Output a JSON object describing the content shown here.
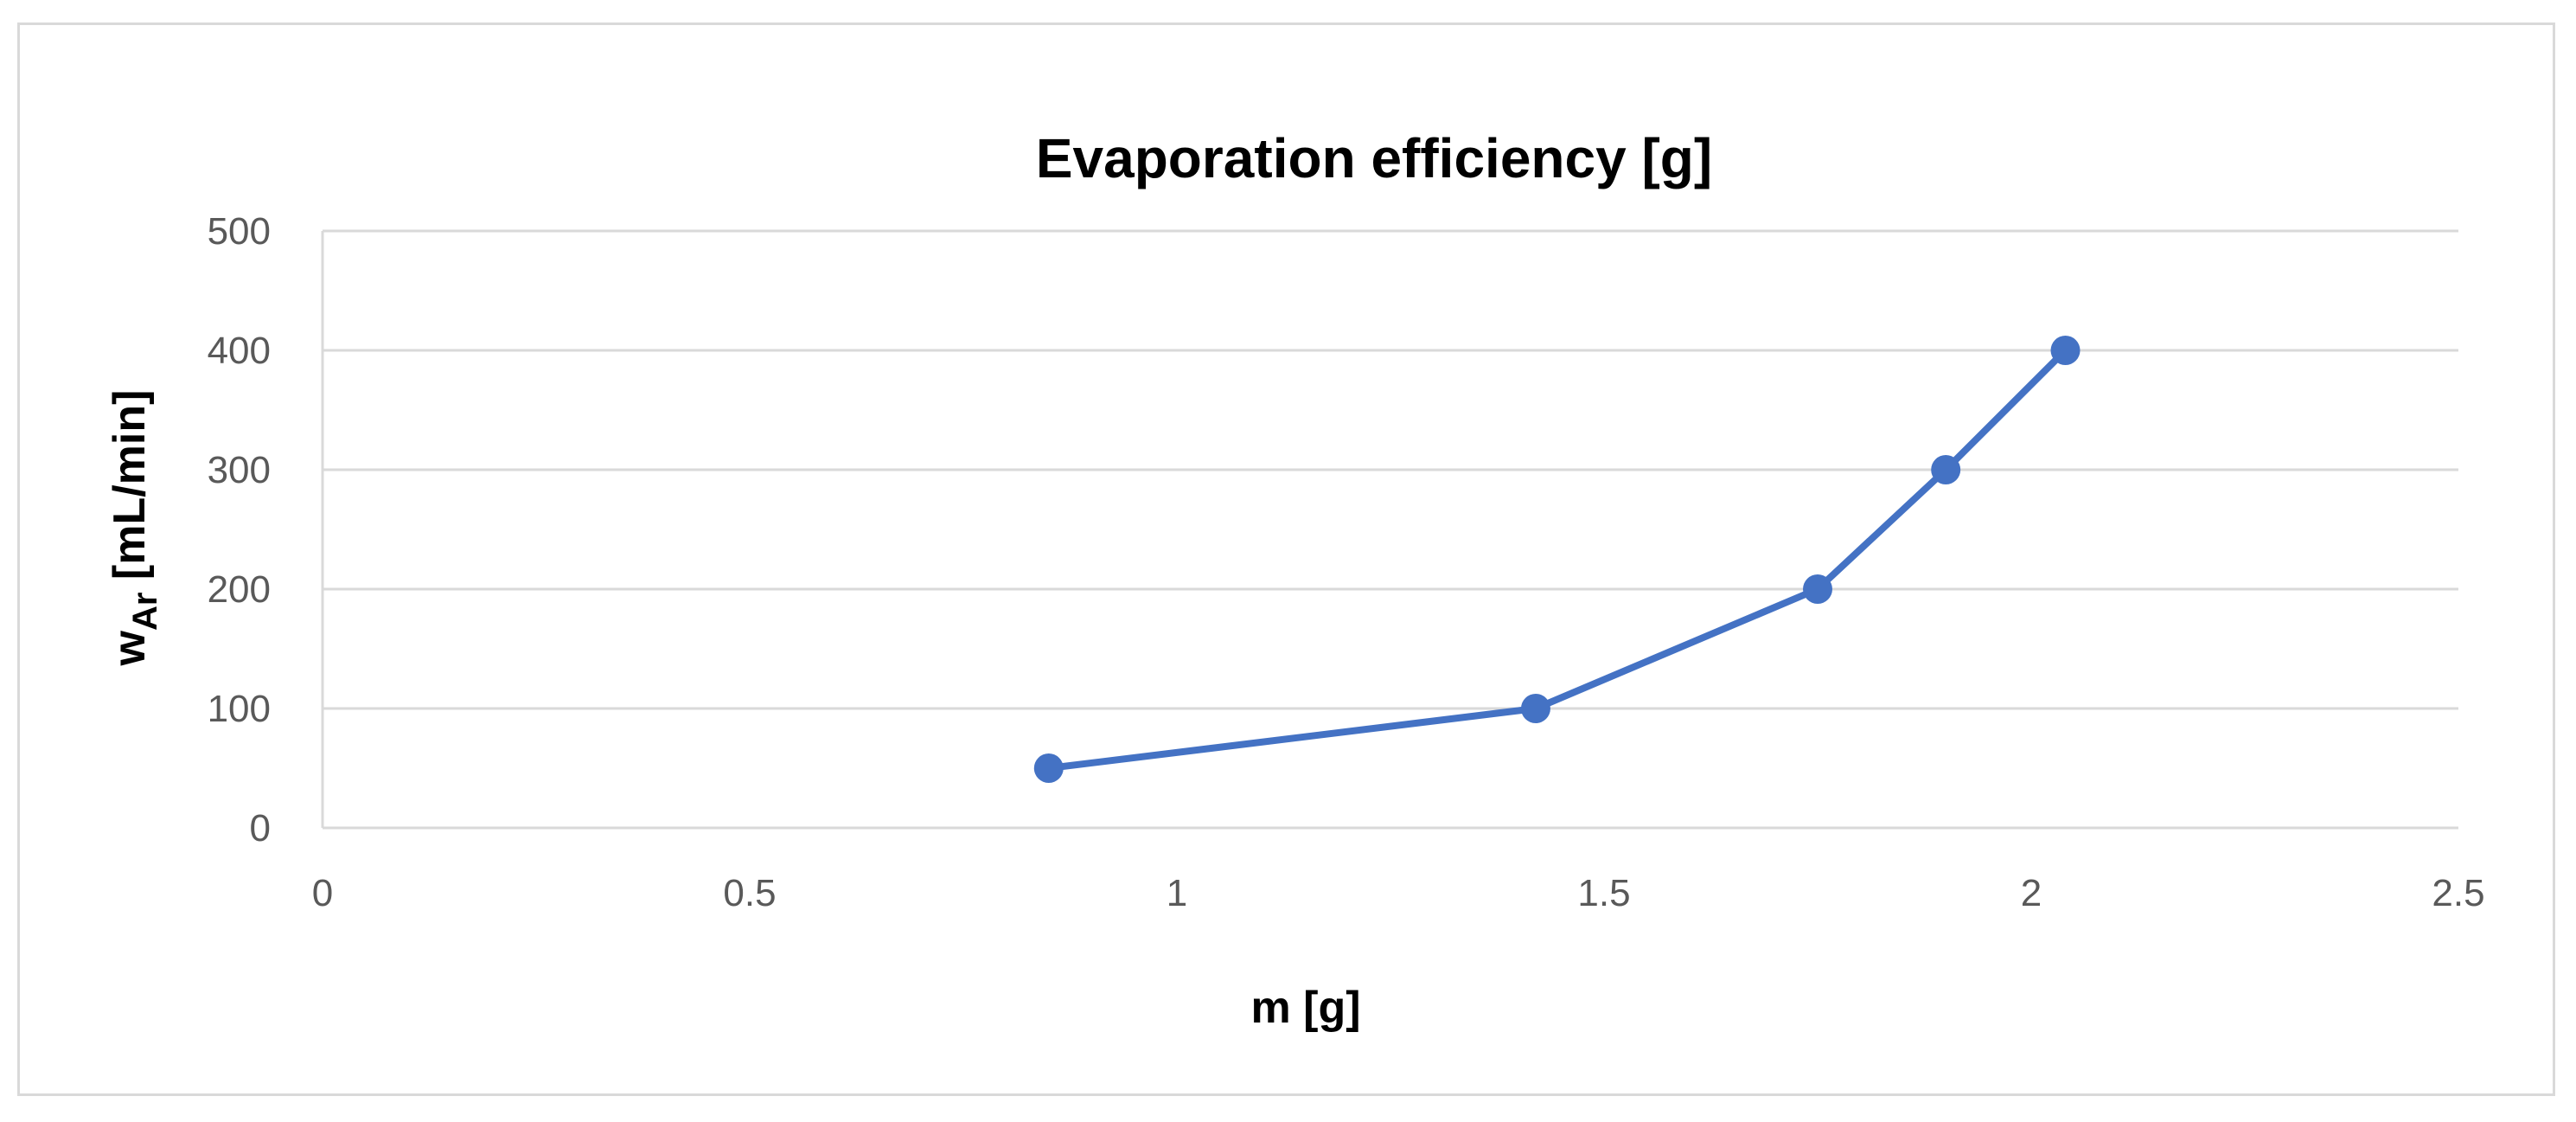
{
  "chart_data": {
    "type": "scatter",
    "title": "Evaporation efficiency [g]",
    "xlabel": "m [g]",
    "ylabel_main": "w",
    "ylabel_subscript": "Ar",
    "ylabel_unit": " [mL/min]",
    "xlim": [
      0,
      2.5
    ],
    "ylim": [
      0,
      500
    ],
    "x_ticks": [
      "0",
      "0.5",
      "1",
      "1.5",
      "2",
      "2.5"
    ],
    "y_ticks": [
      "0",
      "100",
      "200",
      "300",
      "400",
      "500"
    ],
    "grid": "horizontal",
    "legend": "none",
    "series": [
      {
        "color": "#4472c4",
        "points": [
          {
            "x": 0.85,
            "y": 50
          },
          {
            "x": 1.42,
            "y": 100
          },
          {
            "x": 1.75,
            "y": 200
          },
          {
            "x": 1.9,
            "y": 300
          },
          {
            "x": 2.04,
            "y": 400
          }
        ]
      }
    ]
  }
}
